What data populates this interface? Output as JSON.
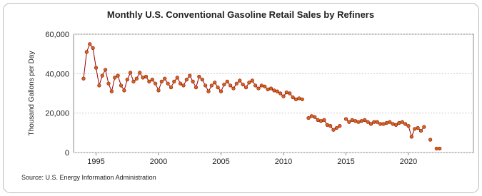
{
  "chart_data": {
    "type": "line",
    "title": "Monthly U.S. Conventional Gasoline Retail Sales by Refiners",
    "y_label": "Thousand Gallons per Day",
    "source": "Source: U.S. Energy Information Administration",
    "x": [
      1994,
      1994.25,
      1994.5,
      1994.75,
      1995,
      1995.25,
      1995.5,
      1995.75,
      1996,
      1996.25,
      1996.5,
      1996.75,
      1997,
      1997.25,
      1997.5,
      1997.75,
      1998,
      1998.25,
      1998.5,
      1998.75,
      1999,
      1999.25,
      1999.5,
      1999.75,
      2000,
      2000.25,
      2000.5,
      2000.75,
      2001,
      2001.25,
      2001.5,
      2001.75,
      2002,
      2002.25,
      2002.5,
      2002.75,
      2003,
      2003.25,
      2003.5,
      2003.75,
      2004,
      2004.25,
      2004.5,
      2004.75,
      2005,
      2005.25,
      2005.5,
      2005.75,
      2006,
      2006.25,
      2006.5,
      2006.75,
      2007,
      2007.25,
      2007.5,
      2007.75,
      2008,
      2008.25,
      2008.5,
      2008.75,
      2009,
      2009.25,
      2009.5,
      2009.75,
      2010,
      2010.25,
      2010.5,
      2010.75,
      2011,
      2011.25,
      2011.5,
      2011.75,
      2012,
      2012.25,
      2012.5,
      2012.75,
      2013,
      2013.25,
      2013.5,
      2013.75,
      2014,
      2014.25,
      2014.5,
      2014.75,
      2015,
      2015.25,
      2015.5,
      2015.75,
      2016,
      2016.25,
      2016.5,
      2016.75,
      2017,
      2017.25,
      2017.5,
      2017.75,
      2018,
      2018.25,
      2018.5,
      2018.75,
      2019,
      2019.25,
      2019.5,
      2019.75,
      2020,
      2020.25,
      2020.5,
      2020.75,
      2021,
      2021.25,
      2021.5,
      2021.75,
      2022,
      2022.25,
      2022.5
    ],
    "series": [
      {
        "name": "Conventional Gasoline Retail Sales by Refiners",
        "color": "#990000",
        "marker_color": "#cc6a1a",
        "values": [
          37500,
          51000,
          55000,
          53000,
          43000,
          34000,
          39000,
          42000,
          35000,
          31000,
          38000,
          39000,
          34000,
          31500,
          37000,
          40500,
          36000,
          37500,
          40500,
          38000,
          38500,
          36000,
          37000,
          35000,
          31500,
          36000,
          37500,
          35000,
          33000,
          36000,
          38000,
          35000,
          34000,
          37000,
          39000,
          36000,
          33000,
          38500,
          37000,
          34000,
          31000,
          34000,
          35500,
          33000,
          31000,
          34500,
          36000,
          34000,
          32500,
          35000,
          36500,
          34500,
          33000,
          35500,
          36500,
          34000,
          32500,
          34000,
          33500,
          32000,
          32500,
          31500,
          31000,
          30000,
          28500,
          30500,
          30000,
          28000,
          27000,
          27500,
          27000,
          null,
          17500,
          18500,
          18000,
          16500,
          16000,
          16500,
          14000,
          13500,
          11500,
          12500,
          13500,
          null,
          17000,
          15500,
          16500,
          16000,
          15500,
          16000,
          16500,
          15500,
          14500,
          15500,
          15500,
          14500,
          14500,
          15000,
          15500,
          14500,
          14000,
          15000,
          15500,
          14500,
          13500,
          8000,
          12000,
          12500,
          11000,
          13000,
          null,
          6500,
          null,
          2000,
          2000
        ]
      }
    ],
    "xlim": [
      1993.2,
      2025.2
    ],
    "xticks": [
      1995,
      2000,
      2005,
      2010,
      2015,
      2020
    ],
    "ylim": [
      0,
      60000
    ],
    "yticks": [
      0,
      {
        "value": 20000,
        "label": "20,000"
      },
      {
        "value": 40000,
        "label": "40,000"
      },
      {
        "value": 60000,
        "label": "60,000"
      }
    ],
    "grid": true
  }
}
